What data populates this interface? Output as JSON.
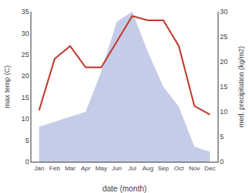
{
  "chart_data": {
    "type": "line",
    "xlabel": "date (month)",
    "ylabel": "max temp (C)",
    "y2label": "med. precipitation (kg/m2)",
    "categories": [
      "Jan",
      "Feb",
      "Mar",
      "Apr",
      "May",
      "Jun",
      "Jul",
      "Aug",
      "Sep",
      "Oct",
      "Nov",
      "Dec"
    ],
    "series": [
      {
        "type": "line",
        "color": "#c0392b",
        "values": [
          12,
          24,
          27,
          22,
          22,
          28,
          34,
          33,
          33,
          27,
          13,
          11
        ]
      },
      {
        "type": "area",
        "axis": "y2",
        "color": "#c5cce8",
        "values": [
          7,
          8,
          9,
          10,
          18,
          28,
          30,
          22,
          15,
          11,
          3,
          2
        ]
      }
    ],
    "ylim": [
      0,
      35
    ],
    "yticks": [
      0,
      5,
      10,
      15,
      20,
      25,
      30,
      35
    ],
    "y2lim": [
      0,
      30
    ],
    "y2ticks": [
      0,
      5,
      10,
      15,
      20,
      25,
      30
    ],
    "grid": false
  }
}
